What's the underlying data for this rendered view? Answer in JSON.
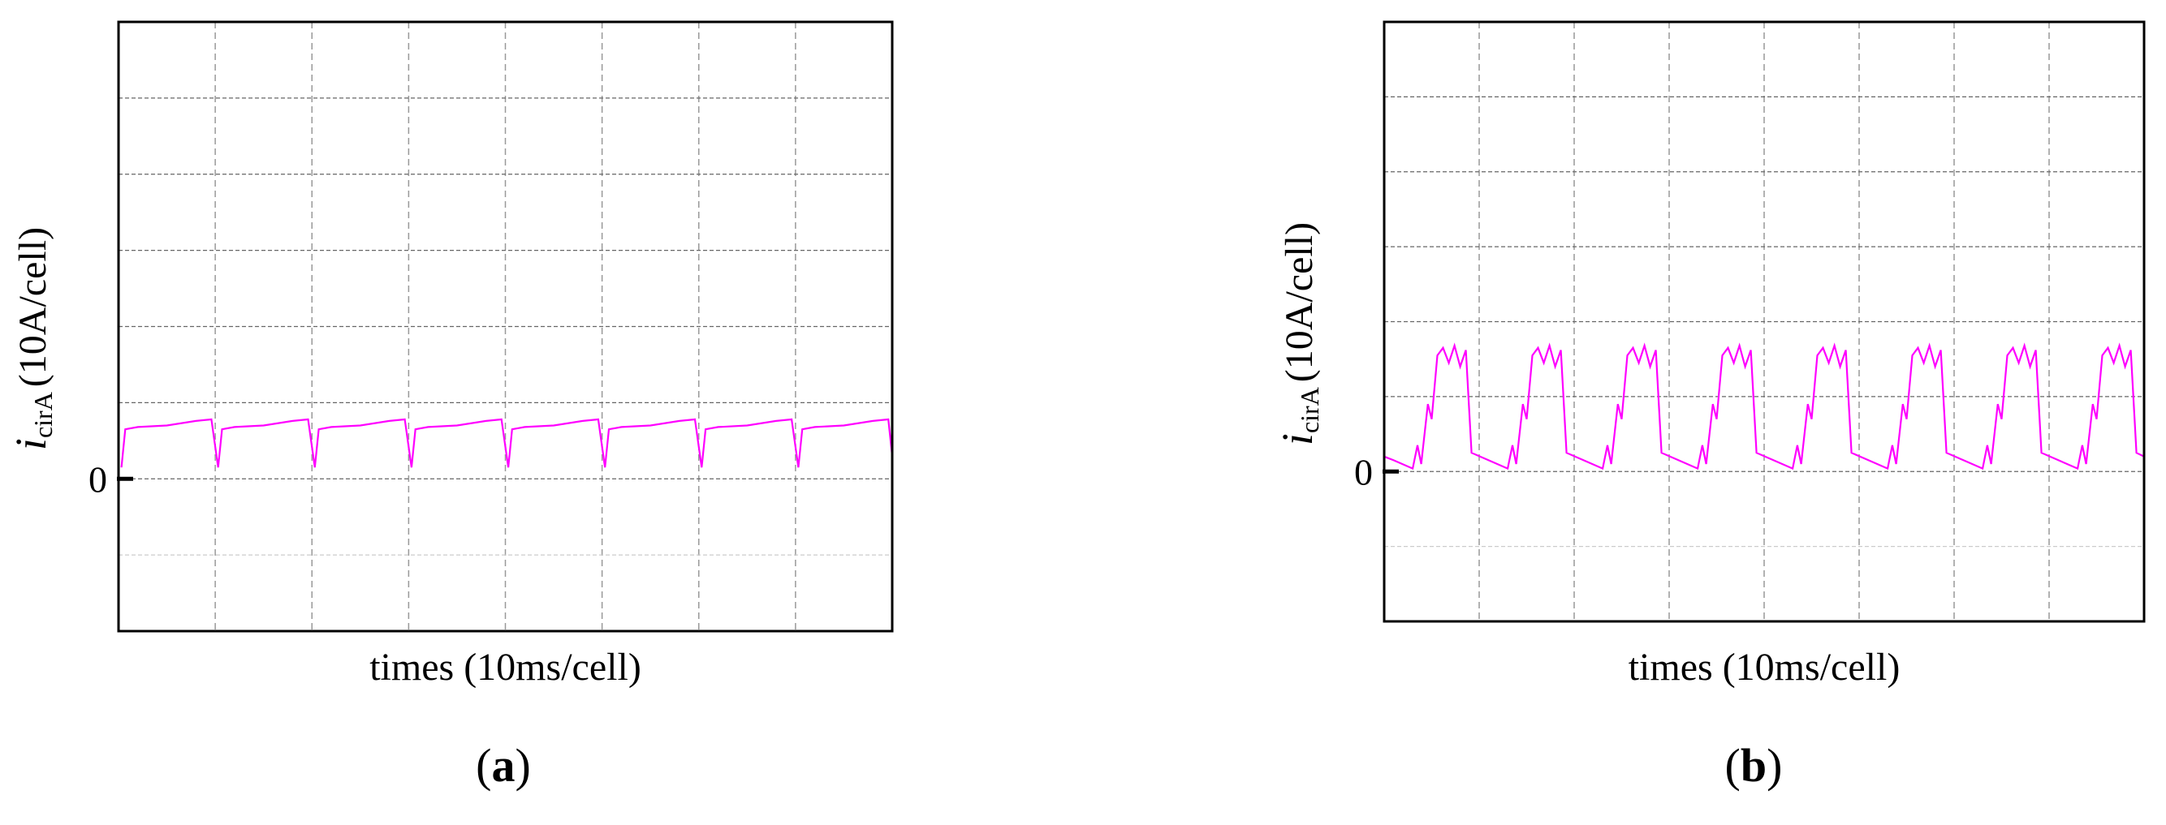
{
  "chart_data": [
    {
      "type": "line",
      "panel_label": [
        "(",
        "a",
        ")"
      ],
      "xlabel": "times (10ms/cell)",
      "ylabel_symbol": "i",
      "ylabel_subscript": "cirA",
      "ylabel_unit": "(10A/cell)",
      "color": "#ff00ff",
      "xlim": [
        0,
        80
      ],
      "ylim": [
        -20,
        60
      ],
      "yticks": [
        0
      ],
      "xgrid": [
        10,
        20,
        30,
        40,
        50,
        60,
        70
      ],
      "ygrid": [
        -10,
        0,
        10,
        20,
        30,
        40,
        50
      ],
      "x": [
        0.3,
        0.7,
        2,
        5,
        8,
        9.6,
        10.3,
        10.7,
        12,
        15,
        18,
        19.6,
        20.3,
        20.7,
        22,
        25,
        28,
        29.6,
        30.3,
        30.7,
        32,
        35,
        38,
        39.6,
        40.3,
        40.7,
        42,
        45,
        48,
        49.6,
        50.3,
        50.7,
        52,
        55,
        58,
        59.6,
        60.3,
        60.7,
        62,
        65,
        68,
        69.6,
        70.3,
        70.7,
        72,
        75,
        78,
        79.6,
        80
      ],
      "values": [
        1.5,
        6.5,
        6.8,
        7.0,
        7.6,
        7.8,
        1.5,
        6.5,
        6.8,
        7.0,
        7.6,
        7.8,
        1.5,
        6.5,
        6.8,
        7.0,
        7.6,
        7.8,
        1.5,
        6.5,
        6.8,
        7.0,
        7.6,
        7.8,
        1.5,
        6.5,
        6.8,
        7.0,
        7.6,
        7.8,
        1.5,
        6.5,
        6.8,
        7.0,
        7.6,
        7.8,
        1.5,
        6.5,
        6.8,
        7.0,
        7.6,
        7.8,
        1.5,
        6.5,
        6.8,
        7.0,
        7.6,
        7.8,
        3
      ]
    },
    {
      "type": "line",
      "panel_label": [
        "(",
        "b",
        ")"
      ],
      "xlabel": "times (10ms/cell)",
      "ylabel_symbol": "i",
      "ylabel_subscript": "cirA",
      "ylabel_unit": "(10A/cell)",
      "color": "#ff00ff",
      "xlim": [
        0,
        80
      ],
      "ylim": [
        -20,
        60
      ],
      "yticks": [
        0
      ],
      "xgrid": [
        10,
        20,
        30,
        40,
        50,
        60,
        70
      ],
      "ygrid": [
        -10,
        0,
        10,
        20,
        30,
        40,
        50
      ],
      "x": [
        0,
        1,
        3,
        3.5,
        3.9,
        4.6,
        5,
        5.6,
        6.2,
        6.8,
        7.4,
        8,
        8.6,
        9.2,
        11,
        13,
        13.5,
        13.9,
        14.6,
        15,
        15.6,
        16.2,
        16.8,
        17.4,
        18,
        18.6,
        19.2,
        21,
        23,
        23.5,
        23.9,
        24.6,
        25,
        25.6,
        26.2,
        26.8,
        27.4,
        28,
        28.6,
        29.2,
        31,
        33,
        33.5,
        33.9,
        34.6,
        35,
        35.6,
        36.2,
        36.8,
        37.4,
        38,
        38.6,
        39.2,
        41,
        43,
        43.5,
        43.9,
        44.6,
        45,
        45.6,
        46.2,
        46.8,
        47.4,
        48,
        48.6,
        49.2,
        51,
        53,
        53.5,
        53.9,
        54.6,
        55,
        55.6,
        56.2,
        56.8,
        57.4,
        58,
        58.6,
        59.2,
        61,
        63,
        63.5,
        63.9,
        64.6,
        65,
        65.6,
        66.2,
        66.8,
        67.4,
        68,
        68.6,
        69.2,
        71,
        73,
        73.5,
        73.9,
        74.6,
        75,
        75.6,
        76.2,
        76.8,
        77.4,
        78,
        78.6,
        79.2,
        80
      ],
      "values": [
        2,
        1.5,
        0.4,
        3.5,
        1,
        9,
        7,
        15.5,
        16.5,
        14.5,
        16.8,
        14,
        16.2,
        2.5,
        1.5,
        0.4,
        3.5,
        1,
        9,
        7,
        15.5,
        16.5,
        14.5,
        16.8,
        14,
        16.2,
        2.5,
        1.5,
        0.4,
        3.5,
        1,
        9,
        7,
        15.5,
        16.5,
        14.5,
        16.8,
        14,
        16.2,
        2.5,
        1.5,
        0.4,
        3.5,
        1,
        9,
        7,
        15.5,
        16.5,
        14.5,
        16.8,
        14,
        16.2,
        2.5,
        1.5,
        0.4,
        3.5,
        1,
        9,
        7,
        15.5,
        16.5,
        14.5,
        16.8,
        14,
        16.2,
        2.5,
        1.5,
        0.4,
        3.5,
        1,
        9,
        7,
        15.5,
        16.5,
        14.5,
        16.8,
        14,
        16.2,
        2.5,
        1.5,
        0.4,
        3.5,
        1,
        9,
        7,
        15.5,
        16.5,
        14.5,
        16.8,
        14,
        16.2,
        2.5,
        1.5,
        0.4,
        3.5,
        1,
        9,
        7,
        15.5,
        16.5,
        14.5,
        16.8,
        14,
        16.2,
        2.5,
        2
      ]
    }
  ]
}
